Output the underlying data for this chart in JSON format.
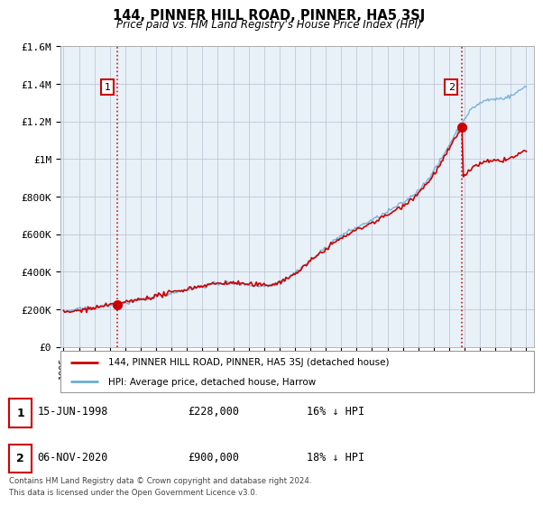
{
  "title": "144, PINNER HILL ROAD, PINNER, HA5 3SJ",
  "subtitle": "Price paid vs. HM Land Registry's House Price Index (HPI)",
  "hpi_label": "HPI: Average price, detached house, Harrow",
  "property_label": "144, PINNER HILL ROAD, PINNER, HA5 3SJ (detached house)",
  "footnote": "Contains HM Land Registry data © Crown copyright and database right 2024.\nThis data is licensed under the Open Government Licence v3.0.",
  "purchase1": {
    "date": "15-JUN-1998",
    "price": 228000,
    "hpi_diff": "16% ↓ HPI",
    "year": 1998.46
  },
  "purchase2": {
    "date": "06-NOV-2020",
    "price": 900000,
    "hpi_diff": "18% ↓ HPI",
    "year": 2020.84
  },
  "hpi_color": "#6baed6",
  "property_color": "#cc0000",
  "marker_color": "#cc0000",
  "dashed_line_color": "#cc0000",
  "chart_bg": "#e8f0f8",
  "ylim": [
    0,
    1600000
  ],
  "xlim_start": 1994.8,
  "xlim_end": 2025.5,
  "yticks": [
    0,
    200000,
    400000,
    600000,
    800000,
    1000000,
    1200000,
    1400000,
    1600000
  ],
  "ytick_labels": [
    "£0",
    "£200K",
    "£400K",
    "£600K",
    "£800K",
    "£1M",
    "£1.2M",
    "£1.4M",
    "£1.6M"
  ],
  "xticks": [
    1995,
    1996,
    1997,
    1998,
    1999,
    2000,
    2001,
    2002,
    2003,
    2004,
    2005,
    2006,
    2007,
    2008,
    2009,
    2010,
    2011,
    2012,
    2013,
    2014,
    2015,
    2016,
    2017,
    2018,
    2019,
    2020,
    2021,
    2022,
    2023,
    2024,
    2025
  ],
  "background_color": "#ffffff",
  "grid_color": "#c0c8d8"
}
